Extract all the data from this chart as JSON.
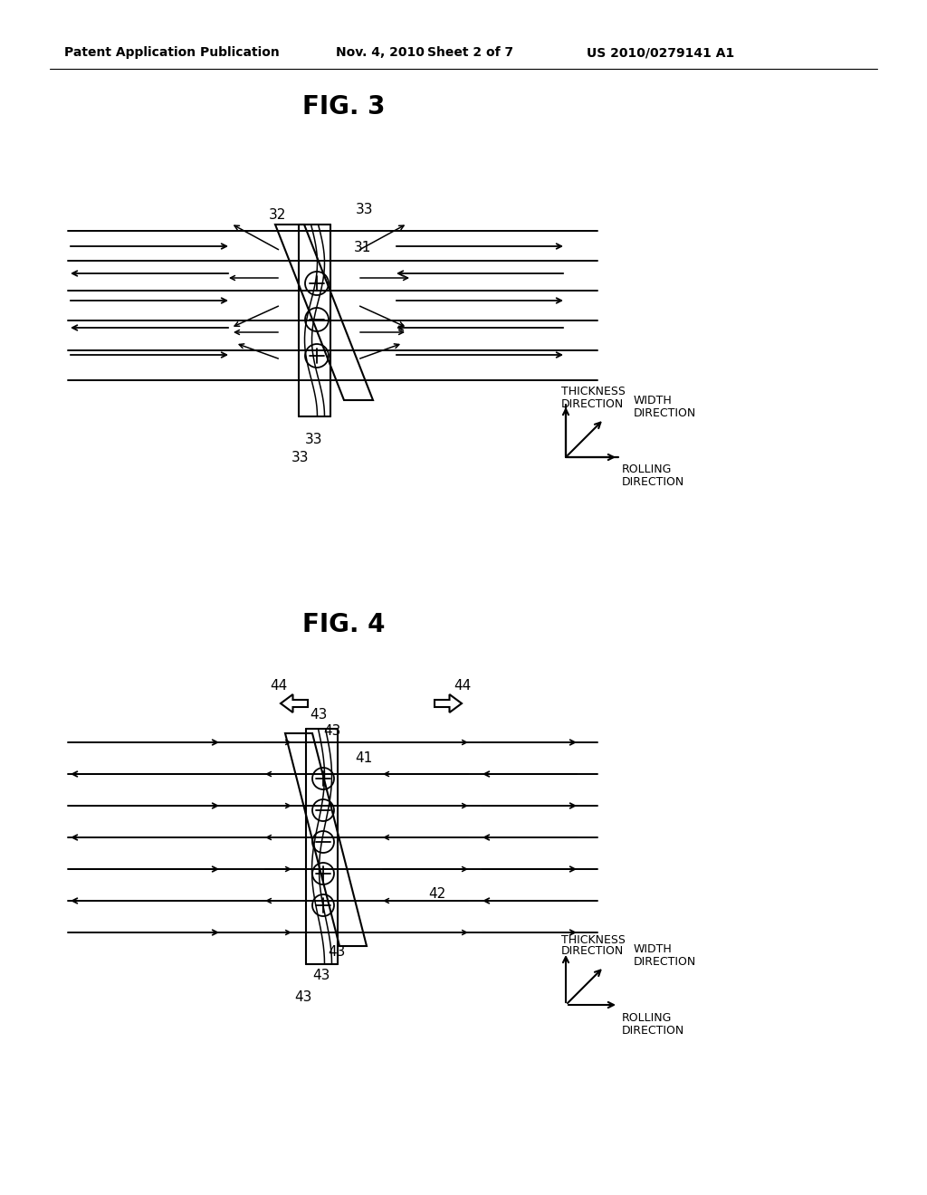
{
  "bg_color": "#ffffff",
  "fig_width": 10.24,
  "fig_height": 13.2,
  "header_text": "Patent Application Publication",
  "header_date": "Nov. 4, 2010",
  "header_sheet": "Sheet 2 of 7",
  "header_patent": "US 2010/0279141 A1",
  "fig3_title": "FIG. 3",
  "fig4_title": "FIG. 4"
}
